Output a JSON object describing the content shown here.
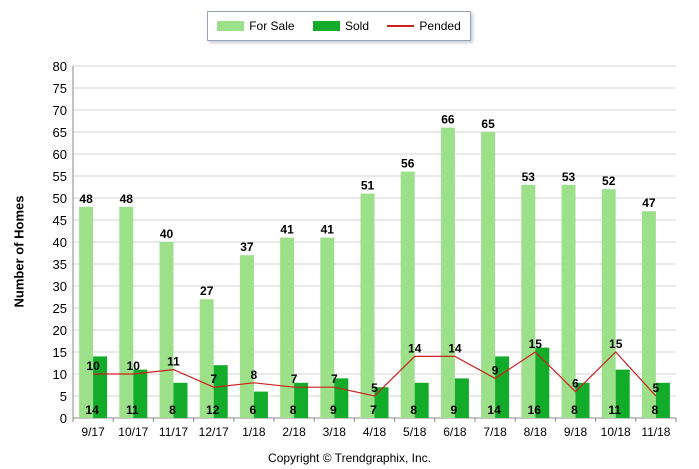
{
  "chart_data": {
    "type": "bar",
    "categories": [
      "9/17",
      "10/17",
      "11/17",
      "12/17",
      "1/18",
      "2/18",
      "3/18",
      "4/18",
      "5/18",
      "6/18",
      "7/18",
      "8/18",
      "9/18",
      "10/18",
      "11/18"
    ],
    "series": [
      {
        "name": "For Sale",
        "kind": "bar",
        "color": "#9de08a",
        "values": [
          48,
          48,
          40,
          27,
          37,
          41,
          41,
          51,
          56,
          66,
          65,
          53,
          53,
          52,
          47
        ]
      },
      {
        "name": "Sold",
        "kind": "bar",
        "color": "#12ab2a",
        "values": [
          14,
          11,
          8,
          12,
          6,
          8,
          9,
          7,
          8,
          9,
          14,
          16,
          8,
          11,
          8
        ]
      },
      {
        "name": "Pended",
        "kind": "line",
        "color": "#cc1f1f",
        "values": [
          10,
          10,
          11,
          7,
          8,
          7,
          7,
          5,
          14,
          14,
          9,
          15,
          6,
          15,
          5
        ]
      }
    ],
    "ylabel": "Number of Homes",
    "ylim": [
      0,
      80
    ],
    "yticks": [
      0,
      5,
      10,
      15,
      20,
      25,
      30,
      35,
      40,
      45,
      50,
      55,
      60,
      65,
      70,
      75,
      80
    ],
    "grid": "horizontal",
    "legend_position": "top-center",
    "copyright": "Copyright © Trendgraphix, Inc."
  }
}
